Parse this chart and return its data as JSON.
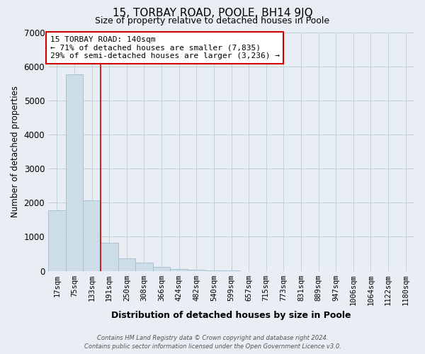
{
  "title": "15, TORBAY ROAD, POOLE, BH14 9JQ",
  "subtitle": "Size of property relative to detached houses in Poole",
  "xlabel": "Distribution of detached houses by size in Poole",
  "ylabel": "Number of detached properties",
  "bar_labels": [
    "17sqm",
    "75sqm",
    "133sqm",
    "191sqm",
    "250sqm",
    "308sqm",
    "366sqm",
    "424sqm",
    "482sqm",
    "540sqm",
    "599sqm",
    "657sqm",
    "715sqm",
    "773sqm",
    "831sqm",
    "889sqm",
    "947sqm",
    "1006sqm",
    "1064sqm",
    "1122sqm",
    "1180sqm"
  ],
  "bar_values": [
    1780,
    5780,
    2080,
    820,
    370,
    230,
    110,
    60,
    30,
    15,
    5,
    0,
    0,
    0,
    0,
    0,
    0,
    0,
    0,
    0,
    0
  ],
  "bar_color": "#ccdde8",
  "bar_edge_color": "#a0bdd0",
  "vline_x_idx": 2,
  "vline_color": "#cc0000",
  "ylim": [
    0,
    7000
  ],
  "yticks": [
    0,
    1000,
    2000,
    3000,
    4000,
    5000,
    6000,
    7000
  ],
  "annotation_title": "15 TORBAY ROAD: 140sqm",
  "annotation_line1": "← 71% of detached houses are smaller (7,835)",
  "annotation_line2": "29% of semi-detached houses are larger (3,236) →",
  "annotation_box_color": "#ffffff",
  "annotation_box_edge": "#cc0000",
  "footer_line1": "Contains HM Land Registry data © Crown copyright and database right 2024.",
  "footer_line2": "Contains public sector information licensed under the Open Government Licence v3.0.",
  "bg_color": "#e8eef4",
  "plot_bg_color": "#e8eef4",
  "grid_color": "#c0d0df",
  "title_fontsize": 11,
  "subtitle_fontsize": 9,
  "ylabel_fontsize": 8.5,
  "xlabel_fontsize": 9,
  "tick_fontsize": 7.5,
  "ytick_fontsize": 8.5,
  "ann_fontsize": 8,
  "footer_fontsize": 6
}
